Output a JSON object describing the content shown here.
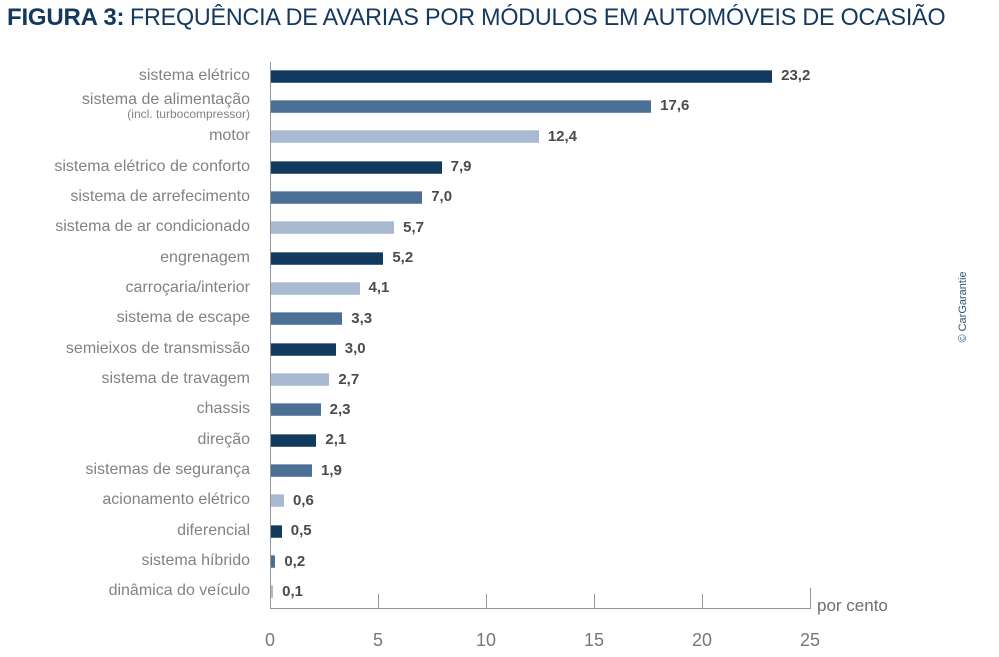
{
  "title": {
    "prefix": "FIGURA 3:",
    "text": "FREQUÊNCIA DE AVARIAS POR MÓDULOS EM AUTOMÓVEIS DE OCASIÃO"
  },
  "credit": "© CarGarantie",
  "colors": {
    "dark": "#123A5F",
    "medium": "#4C7095",
    "light": "#A8B9D2",
    "title_navy": "#14395F",
    "category_label": "#808285",
    "value_label": "#4A4B4D",
    "axis": "#939598",
    "tick_label": "#77787B"
  },
  "chart_data": {
    "type": "bar",
    "orientation": "horizontal",
    "title": "FIGURA 3: FREQUÊNCIA DE AVARIAS POR MÓDULOS EM AUTOMÓVEIS DE OCASIÃO",
    "xlabel": "por cento",
    "xlim": [
      0,
      25
    ],
    "x_ticks": [
      0,
      5,
      10,
      15,
      20,
      25
    ],
    "grid": false,
    "legend": false,
    "categories": [
      {
        "label": "sistema elétrico",
        "sublabel": ""
      },
      {
        "label": "sistema de alimentação",
        "sublabel": "(incl. turbocompressor)"
      },
      {
        "label": "motor",
        "sublabel": ""
      },
      {
        "label": "sistema elétrico de conforto",
        "sublabel": ""
      },
      {
        "label": "sistema de arrefecimento",
        "sublabel": ""
      },
      {
        "label": "sistema de ar condicionado",
        "sublabel": ""
      },
      {
        "label": "engrenagem",
        "sublabel": ""
      },
      {
        "label": "carroçaria/interior",
        "sublabel": ""
      },
      {
        "label": "sistema de escape",
        "sublabel": ""
      },
      {
        "label": "semieixos de transmissão",
        "sublabel": ""
      },
      {
        "label": "sistema de travagem",
        "sublabel": ""
      },
      {
        "label": "chassis",
        "sublabel": ""
      },
      {
        "label": "direção",
        "sublabel": ""
      },
      {
        "label": "sistemas de segurança",
        "sublabel": ""
      },
      {
        "label": "acionamento elétrico",
        "sublabel": ""
      },
      {
        "label": "diferencial",
        "sublabel": ""
      },
      {
        "label": "sistema híbrido",
        "sublabel": ""
      },
      {
        "label": "dinâmica do veículo",
        "sublabel": ""
      }
    ],
    "values": [
      23.2,
      17.6,
      12.4,
      7.9,
      7.0,
      5.7,
      5.2,
      4.1,
      3.3,
      3.0,
      2.7,
      2.3,
      2.1,
      1.9,
      0.6,
      0.5,
      0.2,
      0.1
    ],
    "value_labels": [
      "23,2",
      "17,6",
      "12,4",
      "7,9",
      "7,0",
      "5,7",
      "5,2",
      "4,1",
      "3,3",
      "3,0",
      "2,7",
      "2,3",
      "2,1",
      "1,9",
      "0,6",
      "0,5",
      "0,2",
      "0,1"
    ],
    "bar_colors": [
      "dark",
      "medium",
      "light",
      "dark",
      "medium",
      "light",
      "dark",
      "light",
      "medium",
      "dark",
      "light",
      "medium",
      "dark",
      "medium",
      "light",
      "dark",
      "medium",
      "light"
    ]
  }
}
